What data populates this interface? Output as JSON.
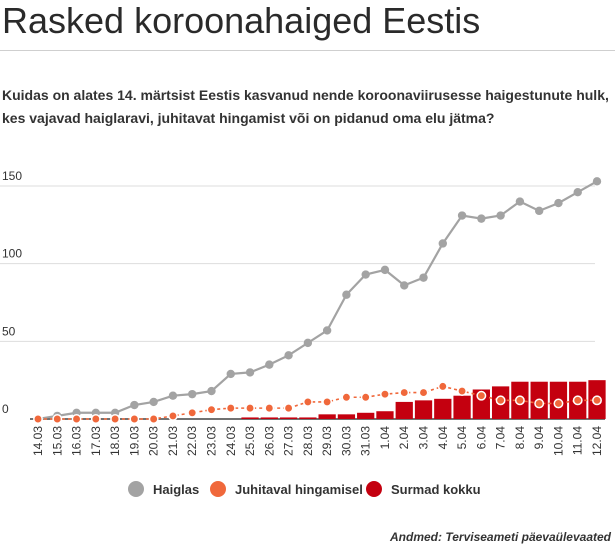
{
  "title": "Rasked koroonahaiged Eestis",
  "subtitle": "Kuidas on alates 14. märtsist Eestis kasvanud nende koroonaviirusesse haigestunute hulk, kes vajavad haiglaravi, juhitavat hingamist või on pidanud oma elu jätma?",
  "source": "Andmed: Terviseameti päevaülevaated",
  "colors": {
    "hospital": "#a3a3a3",
    "ventilation": "#f0683b",
    "deaths": "#c4000f",
    "grid": "#dddddd",
    "axis": "#444444"
  },
  "chart_data": {
    "type": "line",
    "title": "",
    "xlabel": "",
    "ylabel": "",
    "ylim": [
      0,
      160
    ],
    "yticks": [
      0,
      50,
      100,
      150
    ],
    "grid": true,
    "legend_position": "bottom",
    "categories": [
      "14.03",
      "15.03",
      "16.03",
      "17.03",
      "18.03",
      "19.03",
      "20.03",
      "21.03",
      "22.03",
      "23.03",
      "24.03",
      "25.03",
      "26.03",
      "27.03",
      "28.03",
      "29.03",
      "30.03",
      "31.03",
      "1.04",
      "2.04",
      "3.04",
      "4.04",
      "5.04",
      "6.04",
      "7.04",
      "8.04",
      "9.04",
      "10.04",
      "11.04",
      "12.04"
    ],
    "series": [
      {
        "name": "Haiglas",
        "type": "line",
        "color": "#a3a3a3",
        "values": [
          0,
          2,
          4,
          4,
          4,
          9,
          11,
          15,
          16,
          18,
          29,
          30,
          35,
          41,
          49,
          57,
          80,
          93,
          96,
          86,
          91,
          113,
          131,
          129,
          131,
          140,
          134,
          139,
          146,
          153
        ]
      },
      {
        "name": "Juhitaval hingamisel",
        "type": "line",
        "color": "#f0683b",
        "values": [
          0,
          0,
          0,
          0,
          0,
          0,
          0,
          2,
          4,
          6,
          7,
          7,
          7,
          7,
          11,
          11,
          14,
          14,
          16,
          17,
          17,
          21,
          18,
          15,
          12,
          12,
          10,
          10,
          12,
          12
        ]
      },
      {
        "name": "Surmad kokku",
        "type": "bar",
        "color": "#c4000f",
        "values": [
          0,
          0,
          0,
          0,
          0,
          0,
          0,
          0,
          0,
          0,
          0,
          1,
          1,
          1,
          1,
          3,
          3,
          4,
          5,
          11,
          12,
          13,
          15,
          19,
          21,
          24,
          24,
          24,
          24,
          25
        ]
      }
    ]
  }
}
